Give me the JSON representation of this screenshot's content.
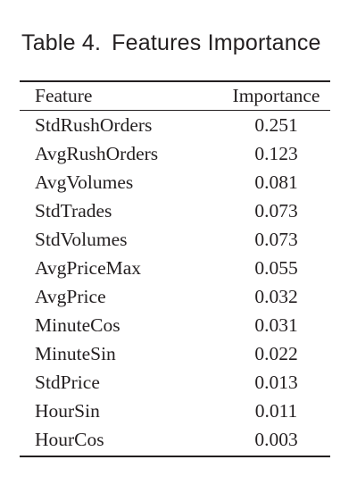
{
  "caption": {
    "label": "Table 4.",
    "title": "Features Importance"
  },
  "table": {
    "headers": {
      "feature": "Feature",
      "importance": "Importance"
    },
    "rows": [
      {
        "feature": "StdRushOrders",
        "importance": "0.251"
      },
      {
        "feature": "AvgRushOrders",
        "importance": "0.123"
      },
      {
        "feature": "AvgVolumes",
        "importance": "0.081"
      },
      {
        "feature": "StdTrades",
        "importance": "0.073"
      },
      {
        "feature": "StdVolumes",
        "importance": "0.073"
      },
      {
        "feature": "AvgPriceMax",
        "importance": "0.055"
      },
      {
        "feature": "AvgPrice",
        "importance": "0.032"
      },
      {
        "feature": "MinuteCos",
        "importance": "0.031"
      },
      {
        "feature": "MinuteSin",
        "importance": "0.022"
      },
      {
        "feature": "StdPrice",
        "importance": "0.013"
      },
      {
        "feature": "HourSin",
        "importance": "0.011"
      },
      {
        "feature": "HourCos",
        "importance": "0.003"
      }
    ]
  }
}
